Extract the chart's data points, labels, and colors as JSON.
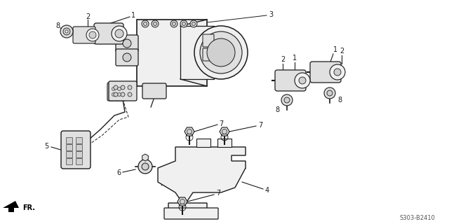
{
  "diagram_code": "S303-B2410",
  "bg_color": "#ffffff",
  "line_color": "#1a1a1a",
  "fig_width": 6.4,
  "fig_height": 3.2,
  "dpi": 100,
  "fr_label": "FR."
}
